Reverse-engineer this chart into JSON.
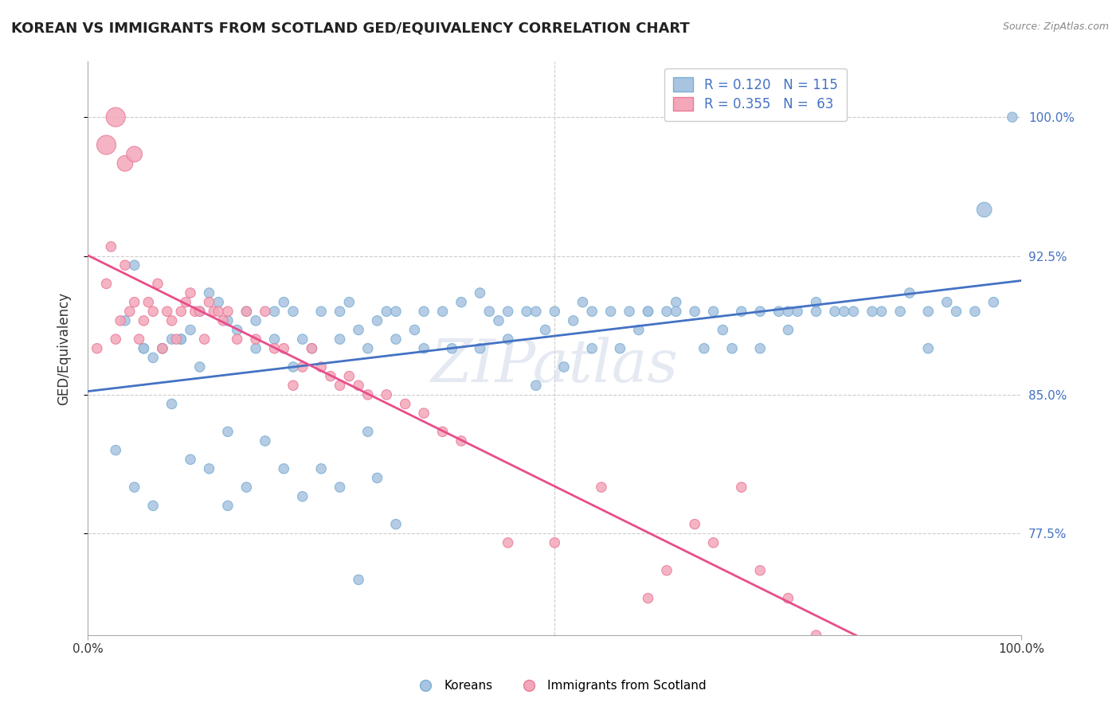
{
  "title": "KOREAN VS IMMIGRANTS FROM SCOTLAND GED/EQUIVALENCY CORRELATION CHART",
  "source": "Source: ZipAtlas.com",
  "ylabel": "GED/Equivalency",
  "xlim": [
    0.0,
    1.0
  ],
  "ylim": [
    0.72,
    1.03
  ],
  "xticks": [
    0.0,
    1.0
  ],
  "xticklabels": [
    "0.0%",
    "100.0%"
  ],
  "yticks": [
    0.775,
    0.85,
    0.925,
    1.0
  ],
  "yticklabels": [
    "77.5%",
    "85.0%",
    "92.5%",
    "100.0%"
  ],
  "watermark": "ZIPatlas",
  "blue_R": 0.12,
  "blue_N": 115,
  "pink_R": 0.355,
  "pink_N": 63,
  "blue_color": "#a8c4e0",
  "pink_color": "#f4a7b9",
  "blue_edge": "#7aafd4",
  "pink_edge": "#e87a9a",
  "trend_blue": "#4472c4",
  "trend_pink": "#e84d8a",
  "background": "#ffffff",
  "grid_color": "#cccccc",
  "blue_x": [
    0.04,
    0.05,
    0.06,
    0.07,
    0.08,
    0.09,
    0.1,
    0.11,
    0.12,
    0.13,
    0.14,
    0.15,
    0.16,
    0.17,
    0.18,
    0.2,
    0.21,
    0.22,
    0.23,
    0.25,
    0.27,
    0.28,
    0.29,
    0.3,
    0.31,
    0.32,
    0.33,
    0.35,
    0.36,
    0.38,
    0.4,
    0.42,
    0.43,
    0.44,
    0.45,
    0.47,
    0.48,
    0.49,
    0.5,
    0.52,
    0.53,
    0.54,
    0.56,
    0.58,
    0.59,
    0.6,
    0.62,
    0.63,
    0.65,
    0.67,
    0.68,
    0.7,
    0.72,
    0.74,
    0.75,
    0.76,
    0.78,
    0.8,
    0.82,
    0.85,
    0.88,
    0.9,
    0.92,
    0.95,
    0.97,
    0.06,
    0.08,
    0.1,
    0.12,
    0.15,
    0.18,
    0.2,
    0.22,
    0.24,
    0.27,
    0.3,
    0.33,
    0.36,
    0.39,
    0.42,
    0.45,
    0.48,
    0.51,
    0.54,
    0.57,
    0.6,
    0.63,
    0.66,
    0.69,
    0.72,
    0.75,
    0.78,
    0.81,
    0.84,
    0.87,
    0.9,
    0.93,
    0.96,
    0.99,
    0.03,
    0.05,
    0.07,
    0.09,
    0.11,
    0.13,
    0.15,
    0.17,
    0.19,
    0.21,
    0.23,
    0.25,
    0.27,
    0.29,
    0.31,
    0.33
  ],
  "blue_y": [
    0.89,
    0.92,
    0.875,
    0.87,
    0.875,
    0.88,
    0.88,
    0.885,
    0.895,
    0.905,
    0.9,
    0.89,
    0.885,
    0.895,
    0.89,
    0.895,
    0.9,
    0.895,
    0.88,
    0.895,
    0.895,
    0.9,
    0.885,
    0.875,
    0.89,
    0.895,
    0.88,
    0.885,
    0.895,
    0.895,
    0.9,
    0.905,
    0.895,
    0.89,
    0.88,
    0.895,
    0.895,
    0.885,
    0.895,
    0.89,
    0.9,
    0.895,
    0.895,
    0.895,
    0.885,
    0.895,
    0.895,
    0.9,
    0.895,
    0.895,
    0.885,
    0.895,
    0.895,
    0.895,
    0.885,
    0.895,
    0.895,
    0.895,
    0.895,
    0.895,
    0.905,
    0.895,
    0.9,
    0.895,
    0.9,
    0.875,
    0.875,
    0.88,
    0.865,
    0.83,
    0.875,
    0.88,
    0.865,
    0.875,
    0.88,
    0.83,
    0.895,
    0.875,
    0.875,
    0.875,
    0.895,
    0.855,
    0.865,
    0.875,
    0.875,
    0.895,
    0.895,
    0.875,
    0.875,
    0.875,
    0.895,
    0.9,
    0.895,
    0.895,
    0.895,
    0.875,
    0.895,
    0.95,
    1.0,
    0.82,
    0.8,
    0.79,
    0.845,
    0.815,
    0.81,
    0.79,
    0.8,
    0.825,
    0.81,
    0.795,
    0.81,
    0.8,
    0.75,
    0.805,
    0.78
  ],
  "blue_sizes": [
    80,
    80,
    80,
    80,
    80,
    80,
    80,
    80,
    80,
    80,
    80,
    80,
    80,
    80,
    80,
    80,
    80,
    80,
    80,
    80,
    80,
    80,
    80,
    80,
    80,
    80,
    80,
    80,
    80,
    80,
    80,
    80,
    80,
    80,
    80,
    80,
    80,
    80,
    80,
    80,
    80,
    80,
    80,
    80,
    80,
    80,
    80,
    80,
    80,
    80,
    80,
    80,
    80,
    80,
    80,
    80,
    80,
    80,
    80,
    80,
    80,
    80,
    80,
    80,
    80,
    80,
    80,
    80,
    80,
    80,
    80,
    80,
    80,
    80,
    80,
    80,
    80,
    80,
    80,
    80,
    80,
    80,
    80,
    80,
    80,
    80,
    80,
    80,
    80,
    80,
    80,
    80,
    80,
    80,
    80,
    80,
    80,
    180,
    80,
    80,
    80,
    80,
    80,
    80,
    80,
    80,
    80,
    80,
    80,
    80,
    80,
    80,
    80,
    80,
    80
  ],
  "pink_x": [
    0.01,
    0.02,
    0.025,
    0.03,
    0.035,
    0.04,
    0.045,
    0.05,
    0.055,
    0.06,
    0.065,
    0.07,
    0.075,
    0.08,
    0.085,
    0.09,
    0.095,
    0.1,
    0.105,
    0.11,
    0.115,
    0.12,
    0.125,
    0.13,
    0.135,
    0.14,
    0.145,
    0.15,
    0.16,
    0.17,
    0.18,
    0.19,
    0.2,
    0.21,
    0.22,
    0.23,
    0.24,
    0.25,
    0.26,
    0.27,
    0.28,
    0.29,
    0.3,
    0.32,
    0.34,
    0.36,
    0.38,
    0.4,
    0.45,
    0.5,
    0.55,
    0.6,
    0.62,
    0.65,
    0.67,
    0.7,
    0.72,
    0.75,
    0.78,
    0.02,
    0.03,
    0.04,
    0.05
  ],
  "pink_y": [
    0.875,
    0.91,
    0.93,
    0.88,
    0.89,
    0.92,
    0.895,
    0.9,
    0.88,
    0.89,
    0.9,
    0.895,
    0.91,
    0.875,
    0.895,
    0.89,
    0.88,
    0.895,
    0.9,
    0.905,
    0.895,
    0.895,
    0.88,
    0.9,
    0.895,
    0.895,
    0.89,
    0.895,
    0.88,
    0.895,
    0.88,
    0.895,
    0.875,
    0.875,
    0.855,
    0.865,
    0.875,
    0.865,
    0.86,
    0.855,
    0.86,
    0.855,
    0.85,
    0.85,
    0.845,
    0.84,
    0.83,
    0.825,
    0.77,
    0.77,
    0.8,
    0.74,
    0.755,
    0.78,
    0.77,
    0.8,
    0.755,
    0.74,
    0.72,
    0.985,
    1.0,
    0.975,
    0.98
  ],
  "pink_sizes": [
    80,
    80,
    80,
    80,
    80,
    80,
    80,
    80,
    80,
    80,
    80,
    80,
    80,
    80,
    80,
    80,
    80,
    80,
    80,
    80,
    80,
    80,
    80,
    80,
    80,
    80,
    80,
    80,
    80,
    80,
    80,
    80,
    80,
    80,
    80,
    80,
    80,
    80,
    80,
    80,
    80,
    80,
    80,
    80,
    80,
    80,
    80,
    80,
    80,
    80,
    80,
    80,
    80,
    80,
    80,
    80,
    80,
    80,
    80,
    300,
    300,
    200,
    200
  ]
}
